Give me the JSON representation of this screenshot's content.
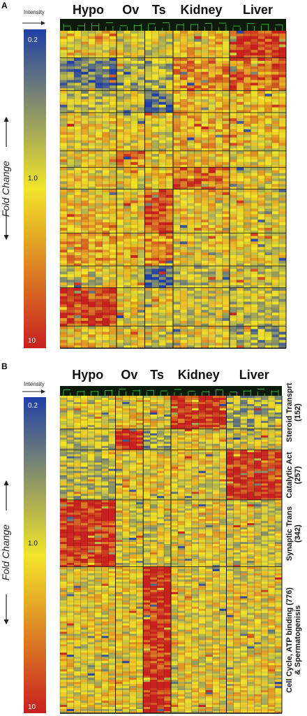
{
  "chart_data": [
    {
      "type": "heatmap",
      "panel": "A",
      "color_scale": {
        "label": "Intensity",
        "axis_label": "Fold Change",
        "ticks": [
          "0.2",
          "1.0",
          "10"
        ],
        "colors": [
          "#1f3fa8",
          "#f2e52a",
          "#c8201f"
        ]
      },
      "columns": [
        {
          "name": "Hypo",
          "count": 8
        },
        {
          "name": "Ov",
          "count": 4
        },
        {
          "name": "Ts",
          "count": 4
        },
        {
          "name": "Kidney",
          "count": 8
        },
        {
          "name": "Liver",
          "count": 8
        }
      ],
      "row_blocks": [
        {
          "rows": 10,
          "levels": [
            0.55,
            0.5,
            0.45,
            0.55,
            0.95
          ]
        },
        {
          "rows": 12,
          "levels": [
            0.2,
            0.4,
            0.35,
            0.7,
            0.8
          ]
        },
        {
          "rows": 8,
          "levels": [
            0.4,
            0.45,
            0.1,
            0.55,
            0.6
          ]
        },
        {
          "rows": 14,
          "levels": [
            0.5,
            0.5,
            0.5,
            0.6,
            0.55
          ]
        },
        {
          "rows": 6,
          "levels": [
            0.5,
            0.75,
            0.5,
            0.55,
            0.5
          ]
        },
        {
          "rows": 8,
          "levels": [
            0.5,
            0.5,
            0.55,
            0.8,
            0.5
          ]
        },
        {
          "rows": 16,
          "levels": [
            0.55,
            0.5,
            0.9,
            0.55,
            0.5
          ]
        },
        {
          "rows": 12,
          "levels": [
            0.65,
            0.55,
            0.7,
            0.5,
            0.5
          ]
        },
        {
          "rows": 8,
          "levels": [
            0.45,
            0.5,
            0.1,
            0.4,
            0.45
          ]
        },
        {
          "rows": 14,
          "levels": [
            0.9,
            0.5,
            0.5,
            0.45,
            0.4
          ]
        },
        {
          "rows": 8,
          "levels": [
            0.55,
            0.5,
            0.45,
            0.5,
            0.3
          ]
        }
      ]
    },
    {
      "type": "heatmap",
      "panel": "B",
      "color_scale": {
        "label": "Intensity",
        "axis_label": "Fold Change",
        "ticks": [
          "0.2",
          "1.0",
          "10"
        ],
        "colors": [
          "#1f3fa8",
          "#f2e52a",
          "#c8201f"
        ]
      },
      "columns": [
        {
          "name": "Hypo",
          "count": 8
        },
        {
          "name": "Ov",
          "count": 4
        },
        {
          "name": "Ts",
          "count": 4
        },
        {
          "name": "Kidney",
          "count": 8
        },
        {
          "name": "Liver",
          "count": 8
        }
      ],
      "row_clusters": [
        {
          "label": "Steroid Transprt",
          "size": "(152)",
          "rows": 16,
          "levels": [
            0.45,
            0.55,
            0.5,
            0.95,
            0.35
          ]
        },
        {
          "label": "",
          "size": "",
          "rows": 10,
          "levels": [
            0.4,
            0.95,
            0.3,
            0.5,
            0.45
          ]
        },
        {
          "label": "Catalytic Act",
          "size": "(257)",
          "rows": 24,
          "levels": [
            0.4,
            0.5,
            0.5,
            0.5,
            0.95
          ]
        },
        {
          "label": "Synaptic Trans",
          "size": "(342)",
          "rows": 32,
          "levels": [
            0.95,
            0.45,
            0.45,
            0.5,
            0.45
          ]
        },
        {
          "label": "Cell Cycle, ATP binding & Spermatogenisis",
          "size": "(776)",
          "rows": 70,
          "levels": [
            0.5,
            0.5,
            0.95,
            0.5,
            0.5
          ]
        }
      ]
    }
  ]
}
